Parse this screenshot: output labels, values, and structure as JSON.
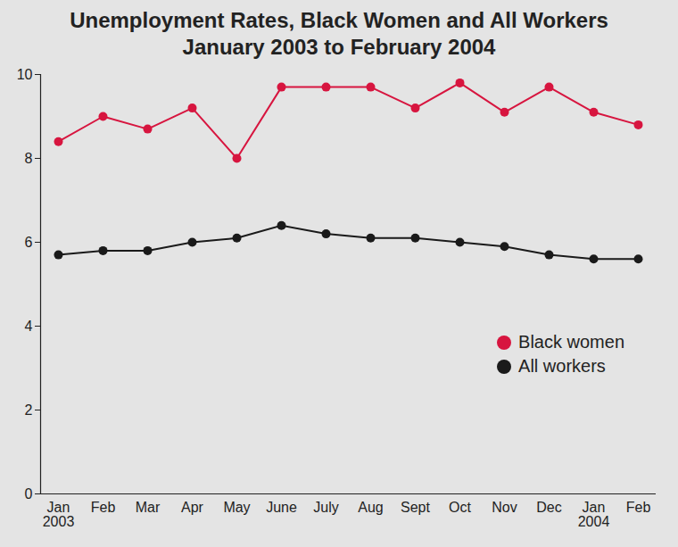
{
  "chart_data": {
    "type": "line",
    "title": "Unemployment Rates, Black Women and All Workers",
    "subtitle": "January 2003 to February 2004",
    "categories": [
      "Jan\n2003",
      "Feb",
      "Mar",
      "Apr",
      "May",
      "June",
      "July",
      "Aug",
      "Sept",
      "Oct",
      "Nov",
      "Dec",
      "Jan\n2004",
      "Feb"
    ],
    "series": [
      {
        "name": "Black women",
        "color": "#d7153f",
        "marker": "circle",
        "line_style": "solid",
        "values": [
          8.4,
          9.0,
          8.7,
          9.2,
          8.0,
          9.7,
          9.7,
          9.7,
          9.2,
          9.8,
          9.1,
          9.7,
          9.1,
          8.8
        ]
      },
      {
        "name": "All workers",
        "color": "#1a1a1a",
        "marker": "circle",
        "line_style": "solid",
        "values": [
          5.7,
          5.8,
          5.8,
          6.0,
          6.1,
          6.4,
          6.2,
          6.1,
          6.1,
          6.0,
          5.9,
          5.7,
          5.6,
          5.6
        ]
      }
    ],
    "ylim": [
      0,
      10
    ],
    "yticks": [
      0,
      2,
      4,
      6,
      8,
      10
    ],
    "grid": false,
    "legend": "right"
  }
}
